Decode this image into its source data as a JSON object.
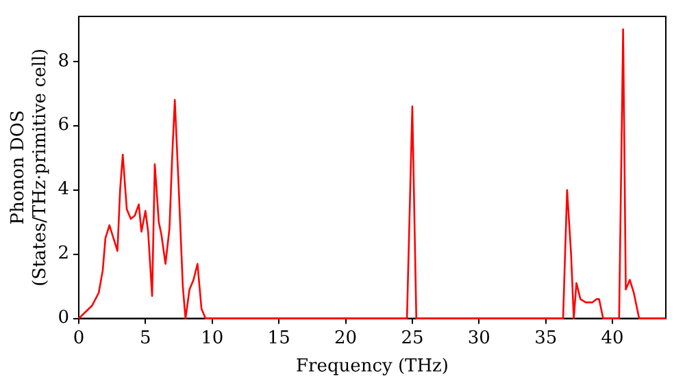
{
  "chart_data": {
    "type": "line",
    "xlabel": "Frequency (THz)",
    "ylabel": "Phonon DOS\n(States/THz·primitive cell)",
    "xlim": [
      0,
      44
    ],
    "ylim": [
      0,
      9.4
    ],
    "xticks": [
      0,
      5,
      10,
      15,
      20,
      25,
      30,
      35,
      40
    ],
    "yticks": [
      0,
      2,
      4,
      6,
      8
    ],
    "grid": false,
    "legend": false,
    "marker": "none",
    "line_style": "solid",
    "series": [
      {
        "color": "#ff0000",
        "x": [
          0,
          0.5,
          1,
          1.5,
          1.8,
          2,
          2.3,
          2.6,
          2.9,
          3.1,
          3.3,
          3.6,
          3.9,
          4.2,
          4.5,
          4.7,
          5,
          5.2,
          5.5,
          5.7,
          6,
          6.2,
          6.5,
          6.8,
          7,
          7.2,
          7.5,
          7.8,
          8,
          8.3,
          8.6,
          8.9,
          9.2,
          9.5,
          24.6,
          25,
          25.3,
          36.3,
          36.6,
          36.9,
          37.1,
          37.3,
          37.6,
          38,
          38.5,
          38.8,
          39,
          39.3,
          40.5,
          40.8,
          41,
          41.3,
          41.6,
          42,
          44
        ],
        "values": [
          0,
          0.2,
          0.4,
          0.8,
          1.5,
          2.5,
          2.9,
          2.5,
          2.1,
          4,
          5.1,
          3.4,
          3.1,
          3.2,
          3.55,
          2.7,
          3.35,
          2.7,
          0.7,
          4.8,
          3,
          2.6,
          1.7,
          2.8,
          5,
          6.8,
          4,
          1,
          0,
          0.9,
          1.2,
          1.7,
          0.3,
          0,
          0,
          6.6,
          0,
          0,
          4,
          2,
          0,
          1.1,
          0.6,
          0.5,
          0.5,
          0.6,
          0.6,
          0,
          0,
          9,
          0.9,
          1.2,
          0.8,
          0,
          0
        ]
      }
    ]
  }
}
